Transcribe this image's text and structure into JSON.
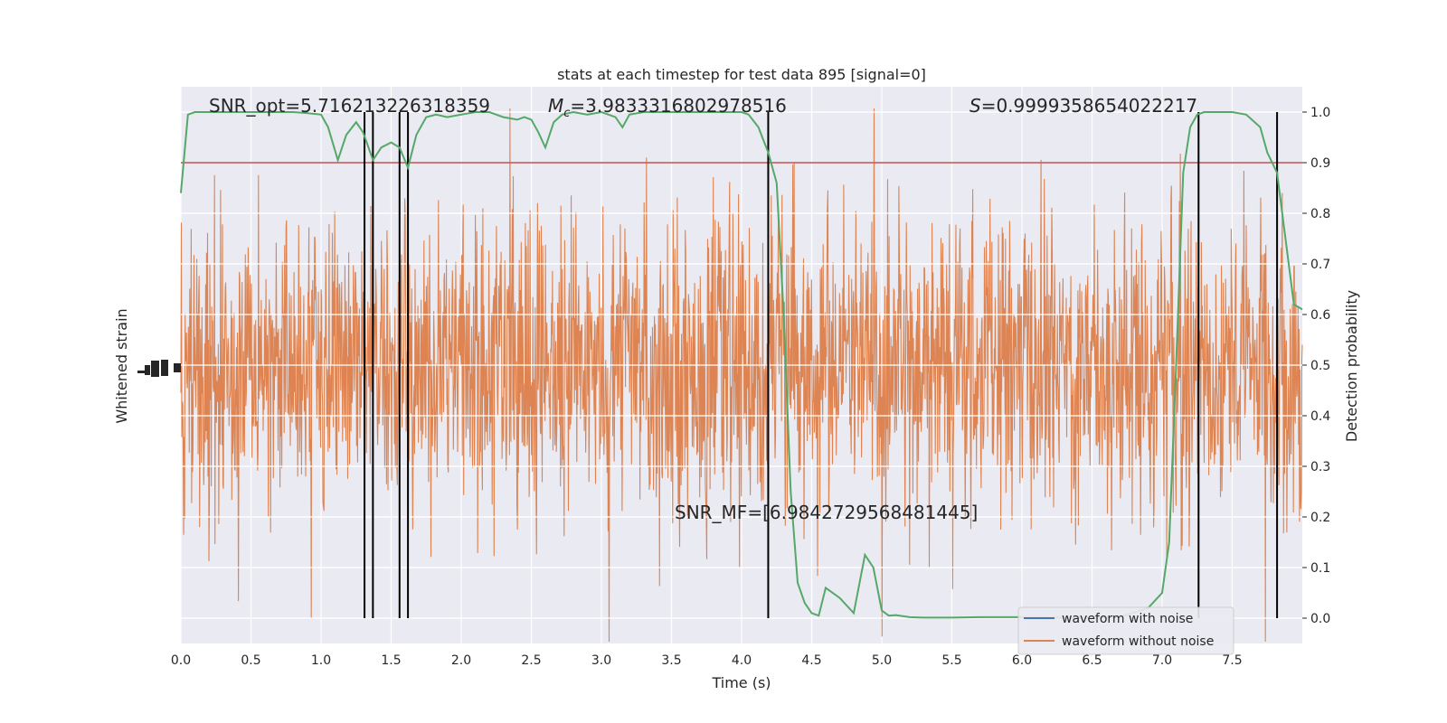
{
  "chart_data": {
    "type": "line",
    "title": "stats at each timestep for test data 895 [signal=0]",
    "xlabel": "Time (s)",
    "ylabel_left": "Whitened strain",
    "ylabel_right": "Detection probability",
    "xlim": [
      0.0,
      8.0
    ],
    "ylim_right": [
      -0.05,
      1.05
    ],
    "x_ticks": [
      "0.0",
      "0.5",
      "1.0",
      "1.5",
      "2.0",
      "2.5",
      "3.0",
      "3.5",
      "4.0",
      "4.5",
      "5.0",
      "5.5",
      "6.0",
      "6.5",
      "7.0",
      "7.5"
    ],
    "y_ticks_right": [
      "0.0",
      "0.1",
      "0.2",
      "0.3",
      "0.4",
      "0.5",
      "0.6",
      "0.7",
      "0.8",
      "0.9",
      "1.0"
    ],
    "grid": true,
    "legend_position": "lower-right",
    "annotations": {
      "snr_opt": "SNR_opt=5.716213226318359",
      "mc_symbol": "M",
      "mc_sub": "c",
      "mc_value": "=3.9833316802978516",
      "s_symbol": "S",
      "s_value": "=0.9999358654022217",
      "snr_mf": "SNR_MF=[6.9842729568481445]"
    },
    "threshold": 0.9,
    "vertical_lines_x": [
      1.31,
      1.37,
      1.56,
      1.62,
      4.19,
      7.26,
      7.82
    ],
    "series": [
      {
        "name": "waveform with noise",
        "color": "#4c72b0",
        "axis": "left",
        "kind": "noise-trace"
      },
      {
        "name": "waveform without noise",
        "color": "#dd8452",
        "axis": "left",
        "kind": "noise-trace"
      },
      {
        "color": "#55a868",
        "axis": "right",
        "x": [
          0.0,
          0.05,
          0.1,
          0.2,
          0.3,
          0.4,
          0.5,
          0.6,
          0.7,
          0.8,
          0.9,
          1.0,
          1.05,
          1.12,
          1.18,
          1.25,
          1.3,
          1.37,
          1.43,
          1.5,
          1.56,
          1.62,
          1.68,
          1.75,
          1.82,
          1.9,
          2.0,
          2.1,
          2.2,
          2.3,
          2.4,
          2.45,
          2.5,
          2.55,
          2.6,
          2.66,
          2.72,
          2.8,
          2.9,
          3.0,
          3.1,
          3.15,
          3.2,
          3.3,
          3.4,
          3.5,
          3.6,
          3.7,
          3.8,
          3.9,
          4.0,
          4.05,
          4.12,
          4.19,
          4.25,
          4.3,
          4.35,
          4.4,
          4.45,
          4.5,
          4.55,
          4.6,
          4.7,
          4.8,
          4.88,
          4.94,
          5.0,
          5.05,
          5.1,
          5.2,
          5.3,
          5.5,
          5.7,
          5.9,
          6.1,
          6.3,
          6.5,
          6.7,
          6.9,
          7.0,
          7.05,
          7.1,
          7.15,
          7.2,
          7.25,
          7.3,
          7.35,
          7.4,
          7.5,
          7.6,
          7.7,
          7.75,
          7.82,
          7.88,
          7.94,
          8.0
        ],
        "y": [
          0.84,
          0.995,
          1.0,
          1.0,
          1.0,
          1.0,
          1.0,
          1.0,
          1.0,
          1.0,
          0.998,
          0.995,
          0.97,
          0.905,
          0.955,
          0.98,
          0.96,
          0.905,
          0.93,
          0.94,
          0.93,
          0.89,
          0.955,
          0.99,
          0.995,
          0.99,
          0.995,
          1.0,
          1.0,
          0.99,
          0.985,
          0.99,
          0.985,
          0.96,
          0.93,
          0.98,
          0.995,
          1.0,
          0.995,
          1.0,
          0.99,
          0.97,
          0.995,
          1.0,
          1.0,
          1.0,
          1.0,
          1.0,
          1.0,
          1.0,
          1.0,
          0.995,
          0.97,
          0.92,
          0.86,
          0.6,
          0.25,
          0.07,
          0.03,
          0.01,
          0.005,
          0.06,
          0.04,
          0.01,
          0.125,
          0.1,
          0.015,
          0.005,
          0.006,
          0.002,
          0.001,
          0.001,
          0.002,
          0.002,
          0.002,
          0.001,
          0.001,
          0.002,
          0.02,
          0.05,
          0.15,
          0.5,
          0.88,
          0.97,
          0.995,
          1.0,
          1.0,
          1.0,
          1.0,
          0.995,
          0.97,
          0.92,
          0.88,
          0.75,
          0.62,
          0.61
        ]
      }
    ]
  }
}
